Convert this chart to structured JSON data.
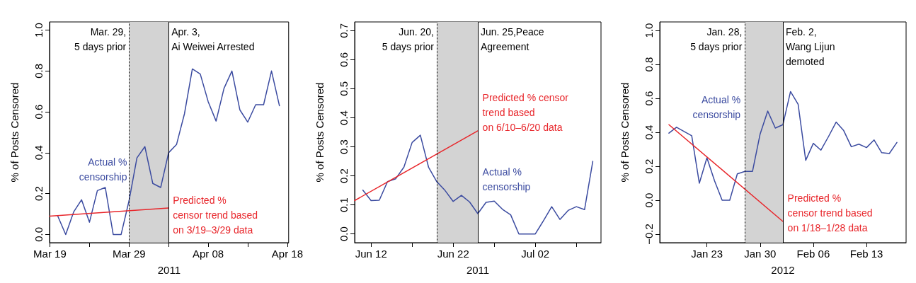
{
  "chart_data": [
    {
      "type": "line",
      "xlabel": "2011",
      "ylabel": "% of Posts Censored",
      "xlim": [
        "2011-03-18T23:00",
        "2011-04-18T04:00"
      ],
      "ylim": [
        -0.04,
        1.04
      ],
      "xticks": [
        {
          "value": "2011-03-19",
          "label": "Mar 19"
        },
        {
          "value": "2011-03-24",
          "label": null
        },
        {
          "value": "2011-03-29",
          "label": "Mar 29"
        },
        {
          "value": "2011-04-03",
          "label": null
        },
        {
          "value": "2011-04-08",
          "label": "Apr 08"
        },
        {
          "value": "2011-04-13",
          "label": null
        },
        {
          "value": "2011-04-18",
          "label": "Apr 18"
        }
      ],
      "yticks": [
        {
          "value": 0,
          "label": "0.0"
        },
        {
          "value": 0.2,
          "label": "0.2"
        },
        {
          "value": 0.4,
          "label": "0.4"
        },
        {
          "value": 0.6,
          "label": "0.6"
        },
        {
          "value": 0.8,
          "label": "0.8"
        },
        {
          "value": 1,
          "label": "1.0"
        }
      ],
      "series": [
        {
          "name": "Actual %\ncensorship",
          "color": "#3b4ba0",
          "x": [
            "2011-03-20",
            "2011-03-21",
            "2011-03-22",
            "2011-03-23",
            "2011-03-24",
            "2011-03-25",
            "2011-03-26",
            "2011-03-27",
            "2011-03-28",
            "2011-03-29",
            "2011-03-30",
            "2011-03-31",
            "2011-04-01",
            "2011-04-02",
            "2011-04-03",
            "2011-04-04",
            "2011-04-05",
            "2011-04-06",
            "2011-04-07",
            "2011-04-08",
            "2011-04-09",
            "2011-04-10",
            "2011-04-11",
            "2011-04-12",
            "2011-04-13",
            "2011-04-14",
            "2011-04-15",
            "2011-04-16",
            "2011-04-17"
          ],
          "values": [
            0.09,
            0.0,
            0.11,
            0.17,
            0.06,
            0.215,
            0.23,
            0.0,
            0.0,
            0.165,
            0.375,
            0.43,
            0.25,
            0.23,
            0.4,
            0.44,
            0.59,
            0.81,
            0.785,
            0.65,
            0.555,
            0.715,
            0.8,
            0.61,
            0.55,
            0.635,
            0.635,
            0.8,
            0.63
          ]
        },
        {
          "name": "Predicted %\ncensor trend based\non 3/19–3/29 data",
          "color": "#e8262b",
          "x": [
            "2011-03-18T23:00",
            "2011-04-03"
          ],
          "values": [
            0.09,
            0.13
          ]
        }
      ],
      "ref_lines": [
        {
          "axis": "x",
          "value": "2011-03-29",
          "label": "Mar. 29,\n5 days prior",
          "line_style": "dotted"
        },
        {
          "axis": "x",
          "value": "2011-04-03",
          "label": "Apr. 3,\nAi Weiwei Arrested",
          "line_style": "solid"
        }
      ],
      "bands": [
        {
          "axis": "x",
          "from": "2011-03-29",
          "to": "2011-04-03",
          "color": "#d3d3d3"
        }
      ]
    },
    {
      "type": "line",
      "xlabel": "2011",
      "ylabel": "% of Posts Censored",
      "xlim": [
        "2011-06-10",
        "2011-07-10"
      ],
      "ylim": [
        -0.03,
        0.73
      ],
      "xticks": [
        {
          "value": "2011-06-12",
          "label": "Jun 12"
        },
        {
          "value": "2011-06-17",
          "label": null
        },
        {
          "value": "2011-06-22",
          "label": "Jun 22"
        },
        {
          "value": "2011-06-27",
          "label": null
        },
        {
          "value": "2011-07-02",
          "label": "Jul 02"
        },
        {
          "value": "2011-07-07",
          "label": null
        }
      ],
      "yticks": [
        {
          "value": 0,
          "label": "0.0"
        },
        {
          "value": 0.1,
          "label": "0.1"
        },
        {
          "value": 0.2,
          "label": "0.2"
        },
        {
          "value": 0.3,
          "label": "0.3"
        },
        {
          "value": 0.4,
          "label": "0.4"
        },
        {
          "value": 0.5,
          "label": "0.5"
        },
        {
          "value": 0.6,
          "label": "0.6"
        },
        {
          "value": 0.7,
          "label": "0.7"
        }
      ],
      "series": [
        {
          "name": "Actual %\ncensorship",
          "color": "#3b4ba0",
          "x": [
            "2011-06-11",
            "2011-06-12",
            "2011-06-13",
            "2011-06-14",
            "2011-06-15",
            "2011-06-16",
            "2011-06-17",
            "2011-06-18",
            "2011-06-19",
            "2011-06-20",
            "2011-06-21",
            "2011-06-22",
            "2011-06-23",
            "2011-06-24",
            "2011-06-25",
            "2011-06-26",
            "2011-06-27",
            "2011-06-28",
            "2011-06-29",
            "2011-06-30",
            "2011-07-01",
            "2011-07-02",
            "2011-07-03",
            "2011-07-04",
            "2011-07-05",
            "2011-07-06",
            "2011-07-07",
            "2011-07-08",
            "2011-07-09"
          ],
          "values": [
            0.151,
            0.115,
            0.116,
            0.18,
            0.19,
            0.23,
            0.315,
            0.34,
            0.23,
            0.18,
            0.15,
            0.112,
            0.133,
            0.11,
            0.07,
            0.109,
            0.113,
            0.085,
            0.066,
            0.0,
            0.0,
            0.0,
            0.046,
            0.094,
            0.05,
            0.081,
            0.094,
            0.084,
            0.25
          ]
        },
        {
          "name": "Predicted % censor\ntrend based\non 6/10–6/20 data",
          "color": "#e8262b",
          "x": [
            "2011-06-10",
            "2011-06-25"
          ],
          "values": [
            0.115,
            0.355
          ]
        }
      ],
      "ref_lines": [
        {
          "axis": "x",
          "value": "2011-06-20",
          "label": "Jun. 20,\n5 days prior",
          "line_style": "dotted"
        },
        {
          "axis": "x",
          "value": "2011-06-25",
          "label": "Jun. 25,Peace\nAgreement",
          "line_style": "solid"
        }
      ],
      "bands": [
        {
          "axis": "x",
          "from": "2011-06-20",
          "to": "2011-06-25",
          "color": "#d3d3d3"
        }
      ]
    },
    {
      "type": "line",
      "xlabel": "2012",
      "ylabel": "% of Posts Censored",
      "xlim": [
        "2012-01-16T19:00",
        "2012-02-18T05:00"
      ],
      "ylim": [
        -0.25,
        1.05
      ],
      "xticks": [
        {
          "value": "2012-01-23",
          "label": "Jan 23"
        },
        {
          "value": "2012-01-30",
          "label": "Jan 30"
        },
        {
          "value": "2012-02-06",
          "label": "Feb 06"
        },
        {
          "value": "2012-02-13",
          "label": "Feb 13"
        }
      ],
      "yticks": [
        {
          "value": -0.2,
          "label": "−0.2"
        },
        {
          "value": 0,
          "label": "0.0"
        },
        {
          "value": 0.2,
          "label": "0.2"
        },
        {
          "value": 0.4,
          "label": "0.4"
        },
        {
          "value": 0.6,
          "label": "0.6"
        },
        {
          "value": 0.8,
          "label": "0.8"
        },
        {
          "value": 1,
          "label": "1.0"
        }
      ],
      "series": [
        {
          "name": "Actual %\ncensorship",
          "color": "#3b4ba0",
          "x": [
            "2012-01-18",
            "2012-01-19",
            "2012-01-20",
            "2012-01-21",
            "2012-01-22",
            "2012-01-23",
            "2012-01-24",
            "2012-01-25",
            "2012-01-26",
            "2012-01-27",
            "2012-01-28",
            "2012-01-29",
            "2012-01-30",
            "2012-01-31",
            "2012-02-01",
            "2012-02-02",
            "2012-02-03",
            "2012-02-04",
            "2012-02-05",
            "2012-02-06",
            "2012-02-07",
            "2012-02-08",
            "2012-02-09",
            "2012-02-10",
            "2012-02-11",
            "2012-02-12",
            "2012-02-13",
            "2012-02-14",
            "2012-02-15",
            "2012-02-16",
            "2012-02-17"
          ],
          "values": [
            0.395,
            0.43,
            0.405,
            0.38,
            0.1,
            0.25,
            0.115,
            0.0,
            0.0,
            0.155,
            0.17,
            0.17,
            0.39,
            0.525,
            0.425,
            0.445,
            0.64,
            0.565,
            0.235,
            0.335,
            0.295,
            0.375,
            0.46,
            0.41,
            0.315,
            0.33,
            0.31,
            0.355,
            0.28,
            0.275,
            0.34
          ]
        },
        {
          "name": "Predicted %\ncensor trend based\non 1/18–1/28 data",
          "color": "#e8262b",
          "x": [
            "2012-01-18",
            "2012-02-02"
          ],
          "values": [
            0.445,
            -0.125
          ]
        }
      ],
      "ref_lines": [
        {
          "axis": "x",
          "value": "2012-01-28",
          "label": "Jan. 28,\n5 days prior",
          "line_style": "dotted"
        },
        {
          "axis": "x",
          "value": "2012-02-02",
          "label": "Feb. 2,\nWang Lijun\ndemoted",
          "line_style": "solid"
        }
      ],
      "bands": [
        {
          "axis": "x",
          "from": "2012-01-28",
          "to": "2012-02-02",
          "color": "#d3d3d3"
        }
      ]
    }
  ]
}
